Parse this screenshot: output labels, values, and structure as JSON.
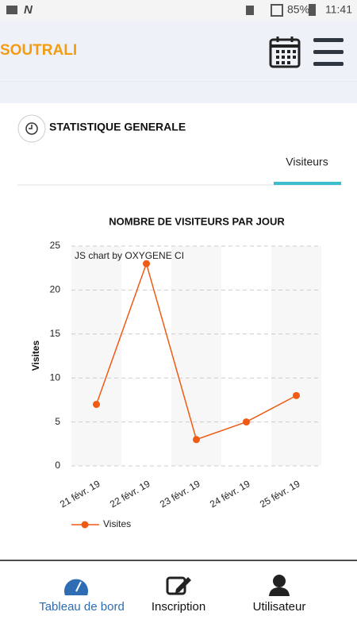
{
  "status_bar": {
    "battery": "85%",
    "time": "11:41"
  },
  "header": {
    "title": "SOUTRALI"
  },
  "section": {
    "title": "STATISTIQUE GENERALE",
    "tab": "Visiteurs"
  },
  "chart_data": {
    "type": "line",
    "title": "NOMBRE DE VISITEURS PAR JOUR",
    "credit": "JS chart by OXYGENE CI",
    "y_label": "Visites",
    "categories": [
      "21 févr. 19",
      "22 févr. 19",
      "23 févr. 19",
      "24 févr. 19",
      "25 févr. 19"
    ],
    "series": [
      {
        "name": "Visites",
        "color": "#f05a14",
        "values": [
          7,
          23,
          3,
          5,
          8
        ]
      }
    ],
    "ylim": [
      0,
      25
    ],
    "yticks": [
      0,
      5,
      10,
      15,
      20,
      25
    ],
    "grid": true
  },
  "nav": {
    "items": [
      "Tableau de bord",
      "Inscription",
      "Utilisateur"
    ]
  }
}
